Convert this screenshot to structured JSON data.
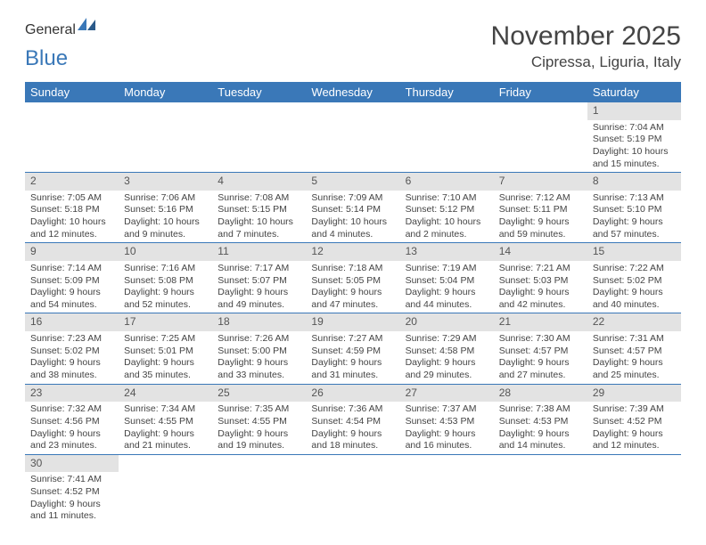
{
  "logo": {
    "text1": "General",
    "text2": "Blue"
  },
  "title": "November 2025",
  "location": "Cipressa, Liguria, Italy",
  "colors": {
    "header_bg": "#3a78b8",
    "header_text": "#ffffff",
    "daynum_bg": "#e3e3e3",
    "row_border": "#3a78b8",
    "logo_gray": "#4a4a4a",
    "logo_blue": "#3a78b8"
  },
  "columns": [
    "Sunday",
    "Monday",
    "Tuesday",
    "Wednesday",
    "Thursday",
    "Friday",
    "Saturday"
  ],
  "weeks": [
    [
      {
        "n": "",
        "sr": "",
        "ss": "",
        "dl": ""
      },
      {
        "n": "",
        "sr": "",
        "ss": "",
        "dl": ""
      },
      {
        "n": "",
        "sr": "",
        "ss": "",
        "dl": ""
      },
      {
        "n": "",
        "sr": "",
        "ss": "",
        "dl": ""
      },
      {
        "n": "",
        "sr": "",
        "ss": "",
        "dl": ""
      },
      {
        "n": "",
        "sr": "",
        "ss": "",
        "dl": ""
      },
      {
        "n": "1",
        "sr": "Sunrise: 7:04 AM",
        "ss": "Sunset: 5:19 PM",
        "dl": "Daylight: 10 hours and 15 minutes."
      }
    ],
    [
      {
        "n": "2",
        "sr": "Sunrise: 7:05 AM",
        "ss": "Sunset: 5:18 PM",
        "dl": "Daylight: 10 hours and 12 minutes."
      },
      {
        "n": "3",
        "sr": "Sunrise: 7:06 AM",
        "ss": "Sunset: 5:16 PM",
        "dl": "Daylight: 10 hours and 9 minutes."
      },
      {
        "n": "4",
        "sr": "Sunrise: 7:08 AM",
        "ss": "Sunset: 5:15 PM",
        "dl": "Daylight: 10 hours and 7 minutes."
      },
      {
        "n": "5",
        "sr": "Sunrise: 7:09 AM",
        "ss": "Sunset: 5:14 PM",
        "dl": "Daylight: 10 hours and 4 minutes."
      },
      {
        "n": "6",
        "sr": "Sunrise: 7:10 AM",
        "ss": "Sunset: 5:12 PM",
        "dl": "Daylight: 10 hours and 2 minutes."
      },
      {
        "n": "7",
        "sr": "Sunrise: 7:12 AM",
        "ss": "Sunset: 5:11 PM",
        "dl": "Daylight: 9 hours and 59 minutes."
      },
      {
        "n": "8",
        "sr": "Sunrise: 7:13 AM",
        "ss": "Sunset: 5:10 PM",
        "dl": "Daylight: 9 hours and 57 minutes."
      }
    ],
    [
      {
        "n": "9",
        "sr": "Sunrise: 7:14 AM",
        "ss": "Sunset: 5:09 PM",
        "dl": "Daylight: 9 hours and 54 minutes."
      },
      {
        "n": "10",
        "sr": "Sunrise: 7:16 AM",
        "ss": "Sunset: 5:08 PM",
        "dl": "Daylight: 9 hours and 52 minutes."
      },
      {
        "n": "11",
        "sr": "Sunrise: 7:17 AM",
        "ss": "Sunset: 5:07 PM",
        "dl": "Daylight: 9 hours and 49 minutes."
      },
      {
        "n": "12",
        "sr": "Sunrise: 7:18 AM",
        "ss": "Sunset: 5:05 PM",
        "dl": "Daylight: 9 hours and 47 minutes."
      },
      {
        "n": "13",
        "sr": "Sunrise: 7:19 AM",
        "ss": "Sunset: 5:04 PM",
        "dl": "Daylight: 9 hours and 44 minutes."
      },
      {
        "n": "14",
        "sr": "Sunrise: 7:21 AM",
        "ss": "Sunset: 5:03 PM",
        "dl": "Daylight: 9 hours and 42 minutes."
      },
      {
        "n": "15",
        "sr": "Sunrise: 7:22 AM",
        "ss": "Sunset: 5:02 PM",
        "dl": "Daylight: 9 hours and 40 minutes."
      }
    ],
    [
      {
        "n": "16",
        "sr": "Sunrise: 7:23 AM",
        "ss": "Sunset: 5:02 PM",
        "dl": "Daylight: 9 hours and 38 minutes."
      },
      {
        "n": "17",
        "sr": "Sunrise: 7:25 AM",
        "ss": "Sunset: 5:01 PM",
        "dl": "Daylight: 9 hours and 35 minutes."
      },
      {
        "n": "18",
        "sr": "Sunrise: 7:26 AM",
        "ss": "Sunset: 5:00 PM",
        "dl": "Daylight: 9 hours and 33 minutes."
      },
      {
        "n": "19",
        "sr": "Sunrise: 7:27 AM",
        "ss": "Sunset: 4:59 PM",
        "dl": "Daylight: 9 hours and 31 minutes."
      },
      {
        "n": "20",
        "sr": "Sunrise: 7:29 AM",
        "ss": "Sunset: 4:58 PM",
        "dl": "Daylight: 9 hours and 29 minutes."
      },
      {
        "n": "21",
        "sr": "Sunrise: 7:30 AM",
        "ss": "Sunset: 4:57 PM",
        "dl": "Daylight: 9 hours and 27 minutes."
      },
      {
        "n": "22",
        "sr": "Sunrise: 7:31 AM",
        "ss": "Sunset: 4:57 PM",
        "dl": "Daylight: 9 hours and 25 minutes."
      }
    ],
    [
      {
        "n": "23",
        "sr": "Sunrise: 7:32 AM",
        "ss": "Sunset: 4:56 PM",
        "dl": "Daylight: 9 hours and 23 minutes."
      },
      {
        "n": "24",
        "sr": "Sunrise: 7:34 AM",
        "ss": "Sunset: 4:55 PM",
        "dl": "Daylight: 9 hours and 21 minutes."
      },
      {
        "n": "25",
        "sr": "Sunrise: 7:35 AM",
        "ss": "Sunset: 4:55 PM",
        "dl": "Daylight: 9 hours and 19 minutes."
      },
      {
        "n": "26",
        "sr": "Sunrise: 7:36 AM",
        "ss": "Sunset: 4:54 PM",
        "dl": "Daylight: 9 hours and 18 minutes."
      },
      {
        "n": "27",
        "sr": "Sunrise: 7:37 AM",
        "ss": "Sunset: 4:53 PM",
        "dl": "Daylight: 9 hours and 16 minutes."
      },
      {
        "n": "28",
        "sr": "Sunrise: 7:38 AM",
        "ss": "Sunset: 4:53 PM",
        "dl": "Daylight: 9 hours and 14 minutes."
      },
      {
        "n": "29",
        "sr": "Sunrise: 7:39 AM",
        "ss": "Sunset: 4:52 PM",
        "dl": "Daylight: 9 hours and 12 minutes."
      }
    ],
    [
      {
        "n": "30",
        "sr": "Sunrise: 7:41 AM",
        "ss": "Sunset: 4:52 PM",
        "dl": "Daylight: 9 hours and 11 minutes."
      },
      {
        "n": "",
        "sr": "",
        "ss": "",
        "dl": ""
      },
      {
        "n": "",
        "sr": "",
        "ss": "",
        "dl": ""
      },
      {
        "n": "",
        "sr": "",
        "ss": "",
        "dl": ""
      },
      {
        "n": "",
        "sr": "",
        "ss": "",
        "dl": ""
      },
      {
        "n": "",
        "sr": "",
        "ss": "",
        "dl": ""
      },
      {
        "n": "",
        "sr": "",
        "ss": "",
        "dl": ""
      }
    ]
  ]
}
